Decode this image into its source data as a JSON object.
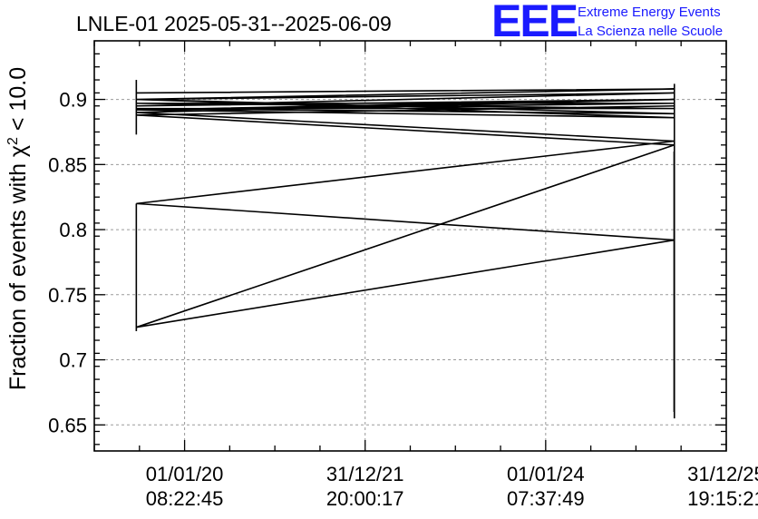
{
  "chart_data": {
    "type": "line",
    "title": "LNLE-01 2025-05-31--2025-06-09",
    "ylabel": "Fraction of events with χ² < 10.0",
    "ylabel_parts": {
      "main": "Fraction of events with χ",
      "superscript": "2",
      "tail": " < 10.0"
    },
    "xlabel": "",
    "ylim": [
      0.63,
      0.945
    ],
    "yticks": [
      0.65,
      0.7,
      0.75,
      0.8,
      0.85,
      0.9
    ],
    "ytick_labels": [
      "0.65",
      "0.7",
      "0.75",
      "0.8",
      "0.85",
      "0.9"
    ],
    "xlim": [
      "2019-01-01T00:00",
      "2026-01-01T00:00"
    ],
    "xticks": [
      {
        "date": "2020-01-01T08:22:45",
        "label_date": "01/01/20",
        "label_time": "08:22:45"
      },
      {
        "date": "2021-12-31T20:00:17",
        "label_date": "31/12/21",
        "label_time": "20:00:17"
      },
      {
        "date": "2024-01-01T07:37:49",
        "label_date": "01/01/24",
        "label_time": "07:37:49"
      },
      {
        "date": "2025-12-31T19:15:21",
        "label_date": "31/12/25",
        "label_time": "19:15:21"
      }
    ],
    "grid": true,
    "bundle_start": "2019-06-20",
    "bundle_end": "2025-06-05",
    "data_run_date": "2025-06-04",
    "series": [
      {
        "values": [
          [
            0.905,
            0.908
          ],
          [
            0.9,
            0.905
          ],
          [
            0.895,
            0.9
          ],
          [
            0.892,
            0.897
          ],
          [
            0.897,
            0.893
          ],
          [
            0.893,
            0.889
          ],
          [
            0.9,
            0.886
          ],
          [
            0.892,
            0.9
          ],
          [
            0.89,
            0.868
          ],
          [
            0.82,
            0.792
          ],
          [
            0.725,
            0.865
          ],
          [
            0.888,
            0.895
          ]
        ]
      },
      {
        "x_date": "2025-06-04",
        "values": [
          0.86,
          0.66
        ]
      }
    ]
  },
  "logo": {
    "letters": "EEE",
    "line1": "Extreme Energy Events",
    "line2": "La Scienza nelle Scuole",
    "color": "#1a1aff"
  }
}
